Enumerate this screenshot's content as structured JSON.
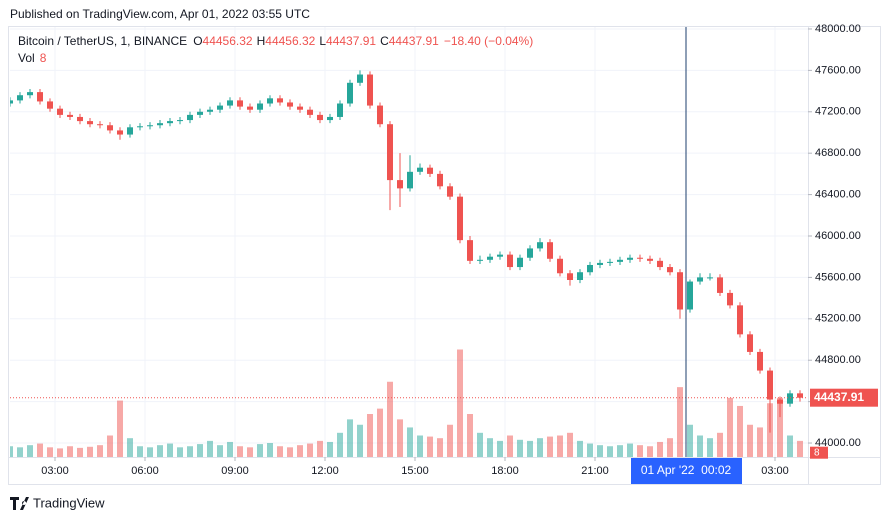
{
  "header": {
    "published": "Published on TradingView.com, Apr 01, 2022 03:55 UTC"
  },
  "chart_data": {
    "type": "candlestick",
    "symbol": "Bitcoin / TetherUS, 1, BINANCE",
    "ohlc_legend": [
      {
        "label": "O",
        "value": 44456.32
      },
      {
        "label": "H",
        "value": 44456.32
      },
      {
        "label": "L",
        "value": 44437.91
      },
      {
        "label": "C",
        "value": 44437.91
      }
    ],
    "change": "−18.40 (−0.04%)",
    "volume_legend": {
      "label": "Vol",
      "value": 8
    },
    "x": [
      90,
      110,
      130,
      150,
      170,
      190,
      210,
      230,
      250,
      270,
      290,
      310,
      330,
      350,
      370,
      390,
      410,
      430,
      450,
      470,
      490,
      510,
      530,
      550,
      570,
      590,
      610,
      630,
      650,
      670,
      690,
      710,
      730,
      750,
      770,
      790,
      810,
      830,
      850,
      870,
      890,
      910,
      930,
      950,
      970,
      990,
      1010,
      1030,
      1050,
      1070,
      1090,
      1110,
      1130,
      1150,
      1170,
      1190,
      1210,
      1230,
      1250,
      1270,
      1290,
      1310,
      1330,
      1350,
      1370,
      1390,
      1410,
      1430,
      1450,
      1470,
      1490,
      1510,
      1530,
      1550,
      1570,
      1590,
      1610,
      1630,
      1650,
      1670
    ],
    "open": [
      47280,
      47310,
      47360,
      47390,
      47300,
      47230,
      47170,
      47150,
      47110,
      47080,
      47070,
      47020,
      46980,
      47050,
      47060,
      47070,
      47090,
      47110,
      47120,
      47170,
      47200,
      47220,
      47260,
      47310,
      47250,
      47220,
      47280,
      47330,
      47290,
      47250,
      47220,
      47170,
      47120,
      47150,
      47280,
      47480,
      47560,
      47260,
      47080,
      46540,
      46460,
      46620,
      46660,
      46600,
      46480,
      46380,
      45960,
      45760,
      45770,
      45800,
      45820,
      45700,
      45790,
      45880,
      45940,
      45780,
      45640,
      45575,
      45650,
      45720,
      45740,
      45750,
      45770,
      45790,
      45780,
      45760,
      45700,
      45650,
      45290,
      45560,
      45600,
      45600,
      45450,
      45330,
      45050,
      44880,
      44700,
      44420,
      44380,
      44480
    ],
    "high": [
      47340,
      47390,
      47420,
      47420,
      47330,
      47260,
      47200,
      47180,
      47140,
      47110,
      47100,
      47050,
      47080,
      47090,
      47100,
      47120,
      47140,
      47150,
      47200,
      47230,
      47250,
      47290,
      47340,
      47340,
      47280,
      47310,
      47360,
      47360,
      47320,
      47280,
      47250,
      47200,
      47180,
      47310,
      47510,
      47600,
      47590,
      47290,
      47110,
      46800,
      46780,
      46700,
      46690,
      46630,
      46510,
      46410,
      46000,
      45810,
      45830,
      45850,
      45850,
      45820,
      45910,
      45980,
      45970,
      45810,
      45670,
      45680,
      45750,
      45770,
      45780,
      45800,
      45820,
      45820,
      45810,
      45790,
      45730,
      45680,
      45580,
      45640,
      45640,
      45630,
      45480,
      45360,
      45080,
      44910,
      44730,
      44450,
      44510,
      44510
    ],
    "low": [
      47250,
      47280,
      47330,
      47270,
      47200,
      47140,
      47120,
      47080,
      47050,
      47040,
      46990,
      46930,
      46950,
      47020,
      47030,
      47040,
      47060,
      47080,
      47090,
      47140,
      47170,
      47190,
      47230,
      47220,
      47190,
      47190,
      47250,
      47260,
      47220,
      47190,
      47140,
      47090,
      47090,
      47120,
      47250,
      47450,
      47230,
      47050,
      46250,
      46280,
      46430,
      46590,
      46570,
      46450,
      46350,
      45930,
      45730,
      45730,
      45740,
      45770,
      45670,
      45670,
      45760,
      45850,
      45750,
      45610,
      45520,
      45545,
      45620,
      45690,
      45710,
      45720,
      45740,
      45750,
      45730,
      45670,
      45620,
      45200,
      45260,
      45530,
      45570,
      45420,
      45300,
      45020,
      44850,
      44670,
      44100,
      44250,
      44350,
      44400
    ],
    "close": [
      47310,
      47360,
      47390,
      47300,
      47230,
      47170,
      47150,
      47110,
      47080,
      47070,
      47020,
      46980,
      47050,
      47060,
      47070,
      47090,
      47110,
      47120,
      47170,
      47200,
      47220,
      47260,
      47310,
      47250,
      47220,
      47280,
      47330,
      47290,
      47250,
      47220,
      47170,
      47120,
      47150,
      47280,
      47480,
      47560,
      47260,
      47080,
      46540,
      46460,
      46620,
      46660,
      46600,
      46480,
      46380,
      45960,
      45760,
      45770,
      45800,
      45820,
      45700,
      45790,
      45880,
      45940,
      45780,
      45640,
      45575,
      45650,
      45720,
      45740,
      45750,
      45770,
      45790,
      45780,
      45760,
      45700,
      45650,
      45290,
      45560,
      45600,
      45600,
      45450,
      45330,
      45050,
      44880,
      44700,
      44420,
      44380,
      44480,
      44437.91
    ],
    "volume": [
      20,
      18,
      22,
      25,
      18,
      16,
      20,
      17,
      19,
      22,
      40,
      105,
      35,
      20,
      18,
      22,
      25,
      18,
      20,
      24,
      30,
      22,
      28,
      20,
      18,
      24,
      26,
      20,
      18,
      22,
      25,
      30,
      28,
      45,
      70,
      60,
      80,
      90,
      140,
      70,
      55,
      40,
      38,
      35,
      60,
      200,
      80,
      45,
      35,
      30,
      40,
      32,
      30,
      35,
      38,
      40,
      45,
      30,
      25,
      22,
      20,
      22,
      25,
      22,
      20,
      28,
      35,
      130,
      60,
      40,
      35,
      45,
      110,
      95,
      60,
      55,
      100,
      110,
      40,
      30
    ],
    "up_color": "#26a69a",
    "down_color": "#ef5350",
    "xlim": [
      90,
      1686
    ],
    "xticks": [
      {
        "value": 180,
        "label": "03:00"
      },
      {
        "value": 360,
        "label": "06:00"
      },
      {
        "value": 540,
        "label": "09:00"
      },
      {
        "value": 720,
        "label": "12:00"
      },
      {
        "value": 900,
        "label": "15:00"
      },
      {
        "value": 1080,
        "label": "18:00"
      },
      {
        "value": 1260,
        "label": "21:00"
      },
      {
        "value": 1620,
        "label": "03:00"
      }
    ],
    "ylim": [
      43865,
      48019
    ],
    "yticks": [
      {
        "value": 44000,
        "label": "44000.00"
      },
      {
        "value": 44400,
        "label": "44400.00"
      },
      {
        "value": 44800,
        "label": "44800.00"
      },
      {
        "value": 45200,
        "label": "45200.00"
      },
      {
        "value": 45600,
        "label": "45600.00"
      },
      {
        "value": 46000,
        "label": "46000.00"
      },
      {
        "value": 46400,
        "label": "46400.00"
      },
      {
        "value": 46800,
        "label": "46800.00"
      },
      {
        "value": 47200,
        "label": "47200.00"
      },
      {
        "value": 47600,
        "label": "47600.00"
      },
      {
        "value": 48000,
        "label": "48000.00"
      }
    ],
    "y2lim": [
      0,
      800
    ],
    "last_price": 44437.91,
    "crosshair": {
      "value": 1442,
      "label": "01 Apr '22  00:02"
    },
    "grid": true
  },
  "footer": {
    "brand": "TradingView"
  }
}
